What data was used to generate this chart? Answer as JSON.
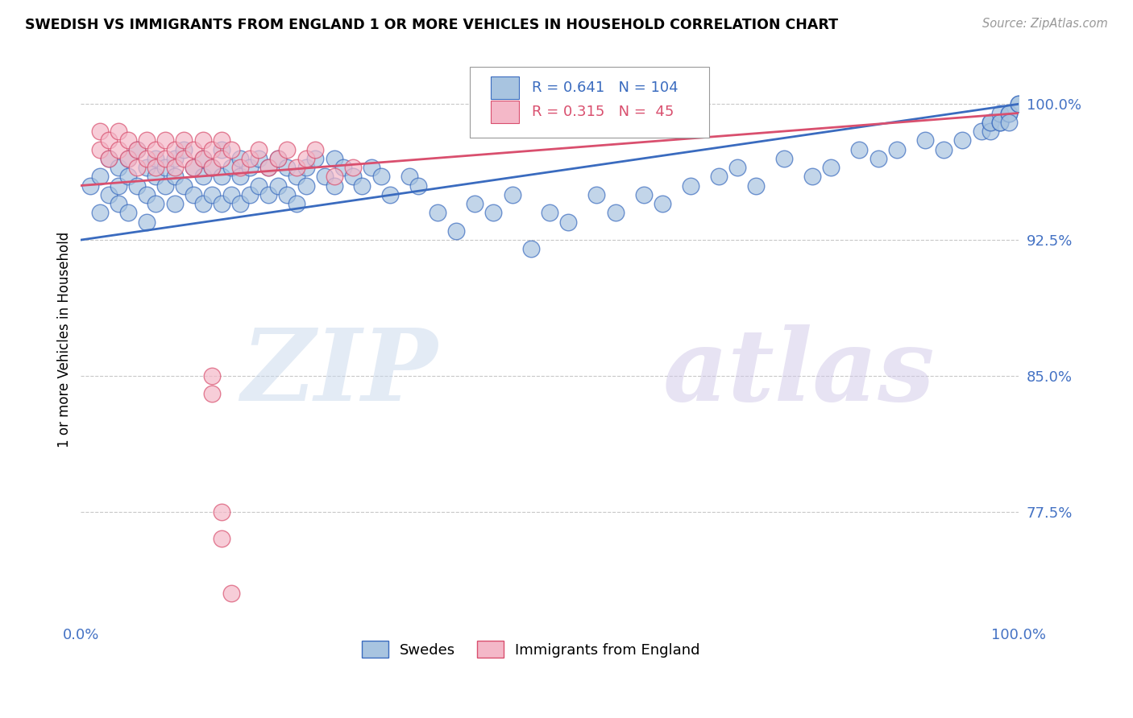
{
  "title": "SWEDISH VS IMMIGRANTS FROM ENGLAND 1 OR MORE VEHICLES IN HOUSEHOLD CORRELATION CHART",
  "source": "Source: ZipAtlas.com",
  "ylabel": "1 or more Vehicles in Household",
  "xlim": [
    0.0,
    1.0
  ],
  "ylim": [
    0.715,
    1.025
  ],
  "yticks": [
    0.775,
    0.85,
    0.925,
    1.0
  ],
  "ytick_labels": [
    "77.5%",
    "85.0%",
    "92.5%",
    "100.0%"
  ],
  "xticks": [
    0.0,
    0.1,
    0.2,
    0.3,
    0.4,
    0.5,
    0.6,
    0.7,
    0.8,
    0.9,
    1.0
  ],
  "xtick_labels": [
    "0.0%",
    "",
    "",
    "",
    "",
    "",
    "",
    "",
    "",
    "",
    "100.0%"
  ],
  "blue_R": 0.641,
  "blue_N": 104,
  "pink_R": 0.315,
  "pink_N": 45,
  "blue_color": "#a8c4e0",
  "blue_line_color": "#3a6bbf",
  "pink_color": "#f4b8c8",
  "pink_line_color": "#d94f6e",
  "legend_blue_label": "Swedes",
  "legend_pink_label": "Immigrants from England",
  "watermark_zip": "ZIP",
  "watermark_atlas": "atlas",
  "blue_scatter_x": [
    0.01,
    0.02,
    0.02,
    0.03,
    0.03,
    0.04,
    0.04,
    0.04,
    0.05,
    0.05,
    0.05,
    0.06,
    0.06,
    0.07,
    0.07,
    0.07,
    0.08,
    0.08,
    0.08,
    0.09,
    0.09,
    0.1,
    0.1,
    0.1,
    0.11,
    0.11,
    0.12,
    0.12,
    0.13,
    0.13,
    0.13,
    0.14,
    0.14,
    0.15,
    0.15,
    0.15,
    0.16,
    0.16,
    0.17,
    0.17,
    0.17,
    0.18,
    0.18,
    0.19,
    0.19,
    0.2,
    0.2,
    0.21,
    0.21,
    0.22,
    0.22,
    0.23,
    0.23,
    0.24,
    0.24,
    0.25,
    0.26,
    0.27,
    0.27,
    0.28,
    0.29,
    0.3,
    0.31,
    0.32,
    0.33,
    0.35,
    0.36,
    0.38,
    0.4,
    0.42,
    0.44,
    0.46,
    0.48,
    0.5,
    0.52,
    0.55,
    0.57,
    0.6,
    0.62,
    0.65,
    0.68,
    0.7,
    0.72,
    0.75,
    0.78,
    0.8,
    0.83,
    0.85,
    0.87,
    0.9,
    0.92,
    0.94,
    0.96,
    0.97,
    0.97,
    0.97,
    0.98,
    0.98,
    0.98,
    0.99,
    0.99,
    0.99,
    1.0,
    1.0
  ],
  "blue_scatter_y": [
    0.955,
    0.96,
    0.94,
    0.97,
    0.95,
    0.965,
    0.955,
    0.945,
    0.97,
    0.96,
    0.94,
    0.975,
    0.955,
    0.965,
    0.95,
    0.935,
    0.97,
    0.96,
    0.945,
    0.965,
    0.955,
    0.97,
    0.96,
    0.945,
    0.975,
    0.955,
    0.965,
    0.95,
    0.97,
    0.96,
    0.945,
    0.965,
    0.95,
    0.975,
    0.96,
    0.945,
    0.965,
    0.95,
    0.97,
    0.96,
    0.945,
    0.965,
    0.95,
    0.97,
    0.955,
    0.965,
    0.95,
    0.97,
    0.955,
    0.965,
    0.95,
    0.96,
    0.945,
    0.965,
    0.955,
    0.97,
    0.96,
    0.97,
    0.955,
    0.965,
    0.96,
    0.955,
    0.965,
    0.96,
    0.95,
    0.96,
    0.955,
    0.94,
    0.93,
    0.945,
    0.94,
    0.95,
    0.92,
    0.94,
    0.935,
    0.95,
    0.94,
    0.95,
    0.945,
    0.955,
    0.96,
    0.965,
    0.955,
    0.97,
    0.96,
    0.965,
    0.975,
    0.97,
    0.975,
    0.98,
    0.975,
    0.98,
    0.985,
    0.99,
    0.985,
    0.99,
    0.99,
    0.995,
    0.99,
    0.995,
    0.995,
    0.99,
    1.0,
    1.0
  ],
  "pink_scatter_x": [
    0.02,
    0.02,
    0.03,
    0.03,
    0.04,
    0.04,
    0.05,
    0.05,
    0.06,
    0.06,
    0.07,
    0.07,
    0.08,
    0.08,
    0.09,
    0.09,
    0.1,
    0.1,
    0.11,
    0.11,
    0.12,
    0.12,
    0.13,
    0.13,
    0.14,
    0.14,
    0.15,
    0.15,
    0.16,
    0.17,
    0.18,
    0.19,
    0.2,
    0.21,
    0.22,
    0.23,
    0.24,
    0.25,
    0.27,
    0.29,
    0.14,
    0.14,
    0.15,
    0.15,
    0.16
  ],
  "pink_scatter_y": [
    0.985,
    0.975,
    0.98,
    0.97,
    0.985,
    0.975,
    0.98,
    0.97,
    0.975,
    0.965,
    0.98,
    0.97,
    0.975,
    0.965,
    0.98,
    0.97,
    0.975,
    0.965,
    0.98,
    0.97,
    0.975,
    0.965,
    0.98,
    0.97,
    0.975,
    0.965,
    0.98,
    0.97,
    0.975,
    0.965,
    0.97,
    0.975,
    0.965,
    0.97,
    0.975,
    0.965,
    0.97,
    0.975,
    0.96,
    0.965,
    0.85,
    0.84,
    0.775,
    0.76,
    0.73
  ]
}
